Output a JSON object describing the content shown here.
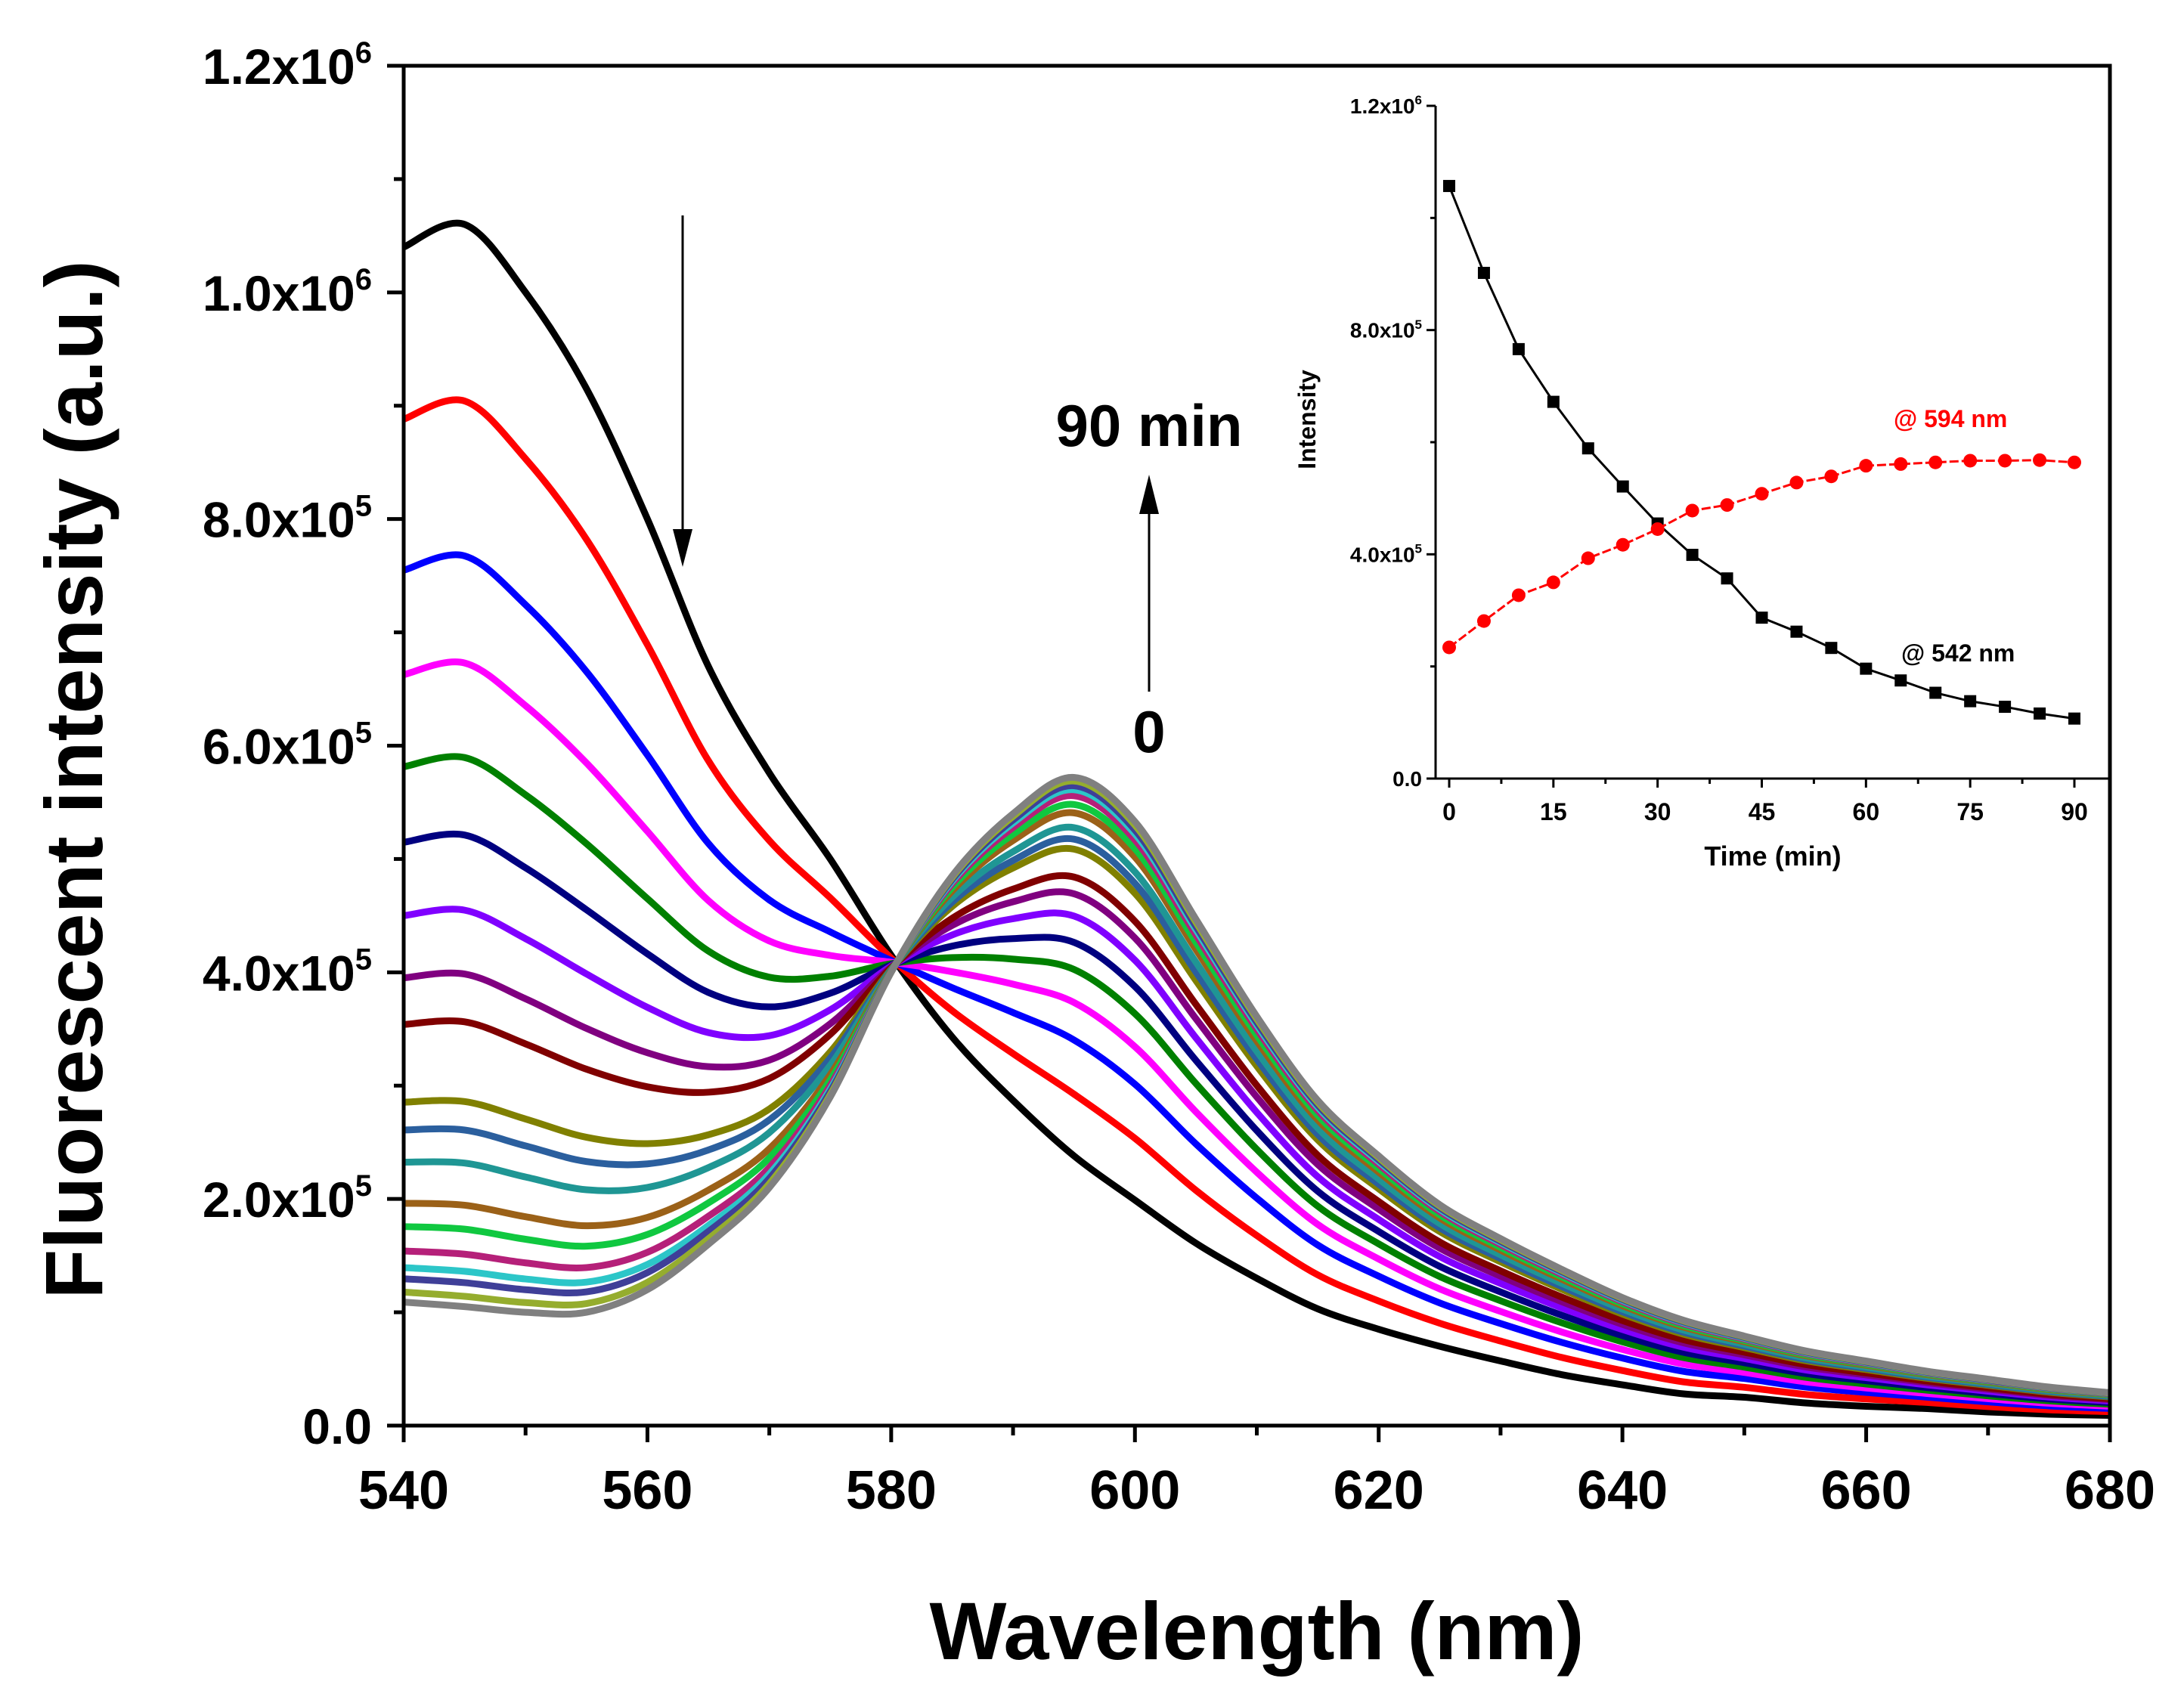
{
  "chart_data": [
    {
      "type": "line",
      "xlabel": "Wavelength (nm)",
      "ylabel": "Fluorescent intensity (a.u.)",
      "xlim": [
        540,
        680
      ],
      "ylim": [
        0,
        1200000
      ],
      "x_ticks": [
        "540",
        "560",
        "580",
        "600",
        "620",
        "640",
        "660",
        "680"
      ],
      "y_ticks": [
        "0.0",
        "2.0x10^5",
        "4.0x10^5",
        "6.0x10^5",
        "8.0x10^5",
        "1.0x10^6",
        "1.2x10^6"
      ],
      "grid": false,
      "annotations": {
        "top_label": "90 min",
        "bottom_label": "0"
      },
      "x": [
        540,
        545,
        550,
        555,
        560,
        565,
        570,
        575,
        580,
        585,
        590,
        595,
        600,
        605,
        610,
        615,
        620,
        625,
        630,
        635,
        640,
        645,
        650,
        655,
        660,
        665,
        670,
        675,
        680
      ],
      "spectrum_0_min": [
        1040000,
        1060000,
        1000000,
        915000,
        800000,
        670000,
        576000,
        500000,
        415000,
        343000,
        287000,
        238000,
        199000,
        161000,
        130000,
        103000,
        85000,
        70000,
        57000,
        45000,
        36000,
        28000,
        25000,
        20000,
        17000,
        15000,
        12000,
        10000,
        9000
      ],
      "spectrum_90_min": [
        109000,
        105000,
        100000,
        100000,
        120000,
        160000,
        210000,
        290000,
        400000,
        485000,
        540000,
        572000,
        533000,
        447000,
        361000,
        287000,
        238000,
        195000,
        165000,
        138000,
        113000,
        93000,
        79000,
        66000,
        57000,
        48000,
        41000,
        34000,
        29000
      ],
      "series_colors": [
        "#000000",
        "#ff0000",
        "#0000ff",
        "#ff00ff",
        "#008000",
        "#000080",
        "#8000ff",
        "#800080",
        "#800000",
        "#808000",
        "#2b5f9e",
        "#1f9694",
        "#9b6118",
        "#10c840",
        "#b52079",
        "#2cc6c8",
        "#3f3f98",
        "#95ad2e",
        "#808080"
      ]
    },
    {
      "type": "line",
      "xlabel": "Time (min)",
      "ylabel": "Intensity",
      "xlim": [
        -3,
        95
      ],
      "ylim": [
        0,
        1200000
      ],
      "x_ticks": [
        "0",
        "15",
        "30",
        "45",
        "60",
        "75",
        "90"
      ],
      "y_ticks": [
        "0.0",
        "4.0x10^5",
        "8.0x10^5",
        "1.2x10^6"
      ],
      "x": [
        0,
        5,
        10,
        15,
        20,
        25,
        30,
        35,
        40,
        45,
        50,
        55,
        60,
        65,
        70,
        75,
        80,
        85,
        90
      ],
      "series": [
        {
          "name": "@ 542 nm",
          "color": "#000000",
          "marker": "square",
          "values": [
            1057000,
            902000,
            766000,
            672000,
            589000,
            521000,
            455000,
            399000,
            357000,
            287000,
            262000,
            233000,
            196000,
            175000,
            153000,
            138000,
            128000,
            116000,
            107000
          ]
        },
        {
          "name": "@ 594 nm",
          "color": "#ff0000",
          "marker": "circle",
          "values": [
            234000,
            281000,
            327000,
            350000,
            393000,
            417000,
            445000,
            478000,
            488000,
            508000,
            528000,
            539000,
            558000,
            561000,
            564000,
            567000,
            567000,
            568000,
            564000
          ]
        }
      ]
    }
  ]
}
